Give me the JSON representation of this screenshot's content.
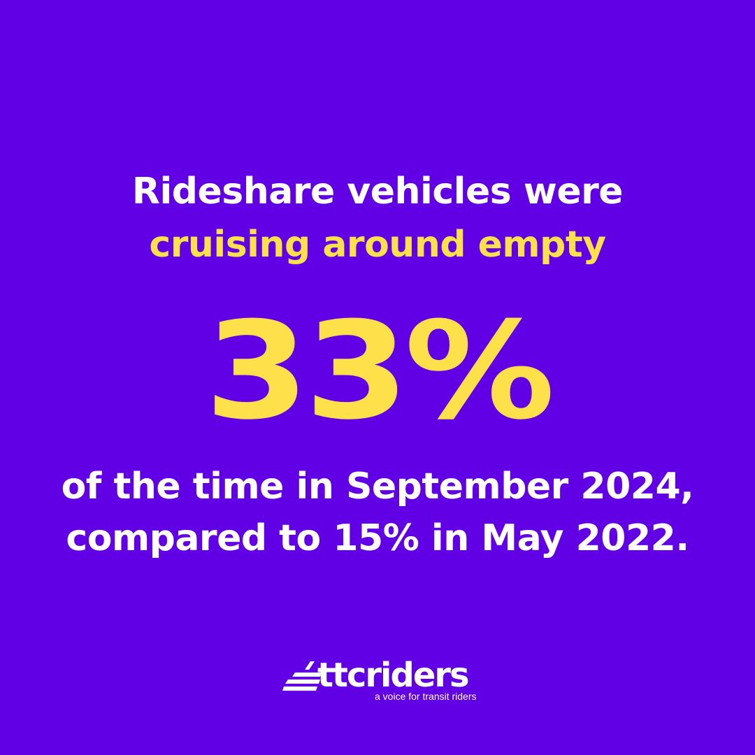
{
  "colors": {
    "background": "#6200e5",
    "accent": "#fee14a",
    "text": "#ffffff"
  },
  "headline": {
    "line1": "Rideshare vehicles were",
    "line2": "cruising around empty"
  },
  "stat": {
    "value": "33%"
  },
  "caption": {
    "line1": "of the time in September 2024,",
    "line2": "compared to 15% in May 2022."
  },
  "logo": {
    "wordmark": "ttcriders",
    "tagline": "a voice for transit riders",
    "icon": "streetcar-icon"
  }
}
